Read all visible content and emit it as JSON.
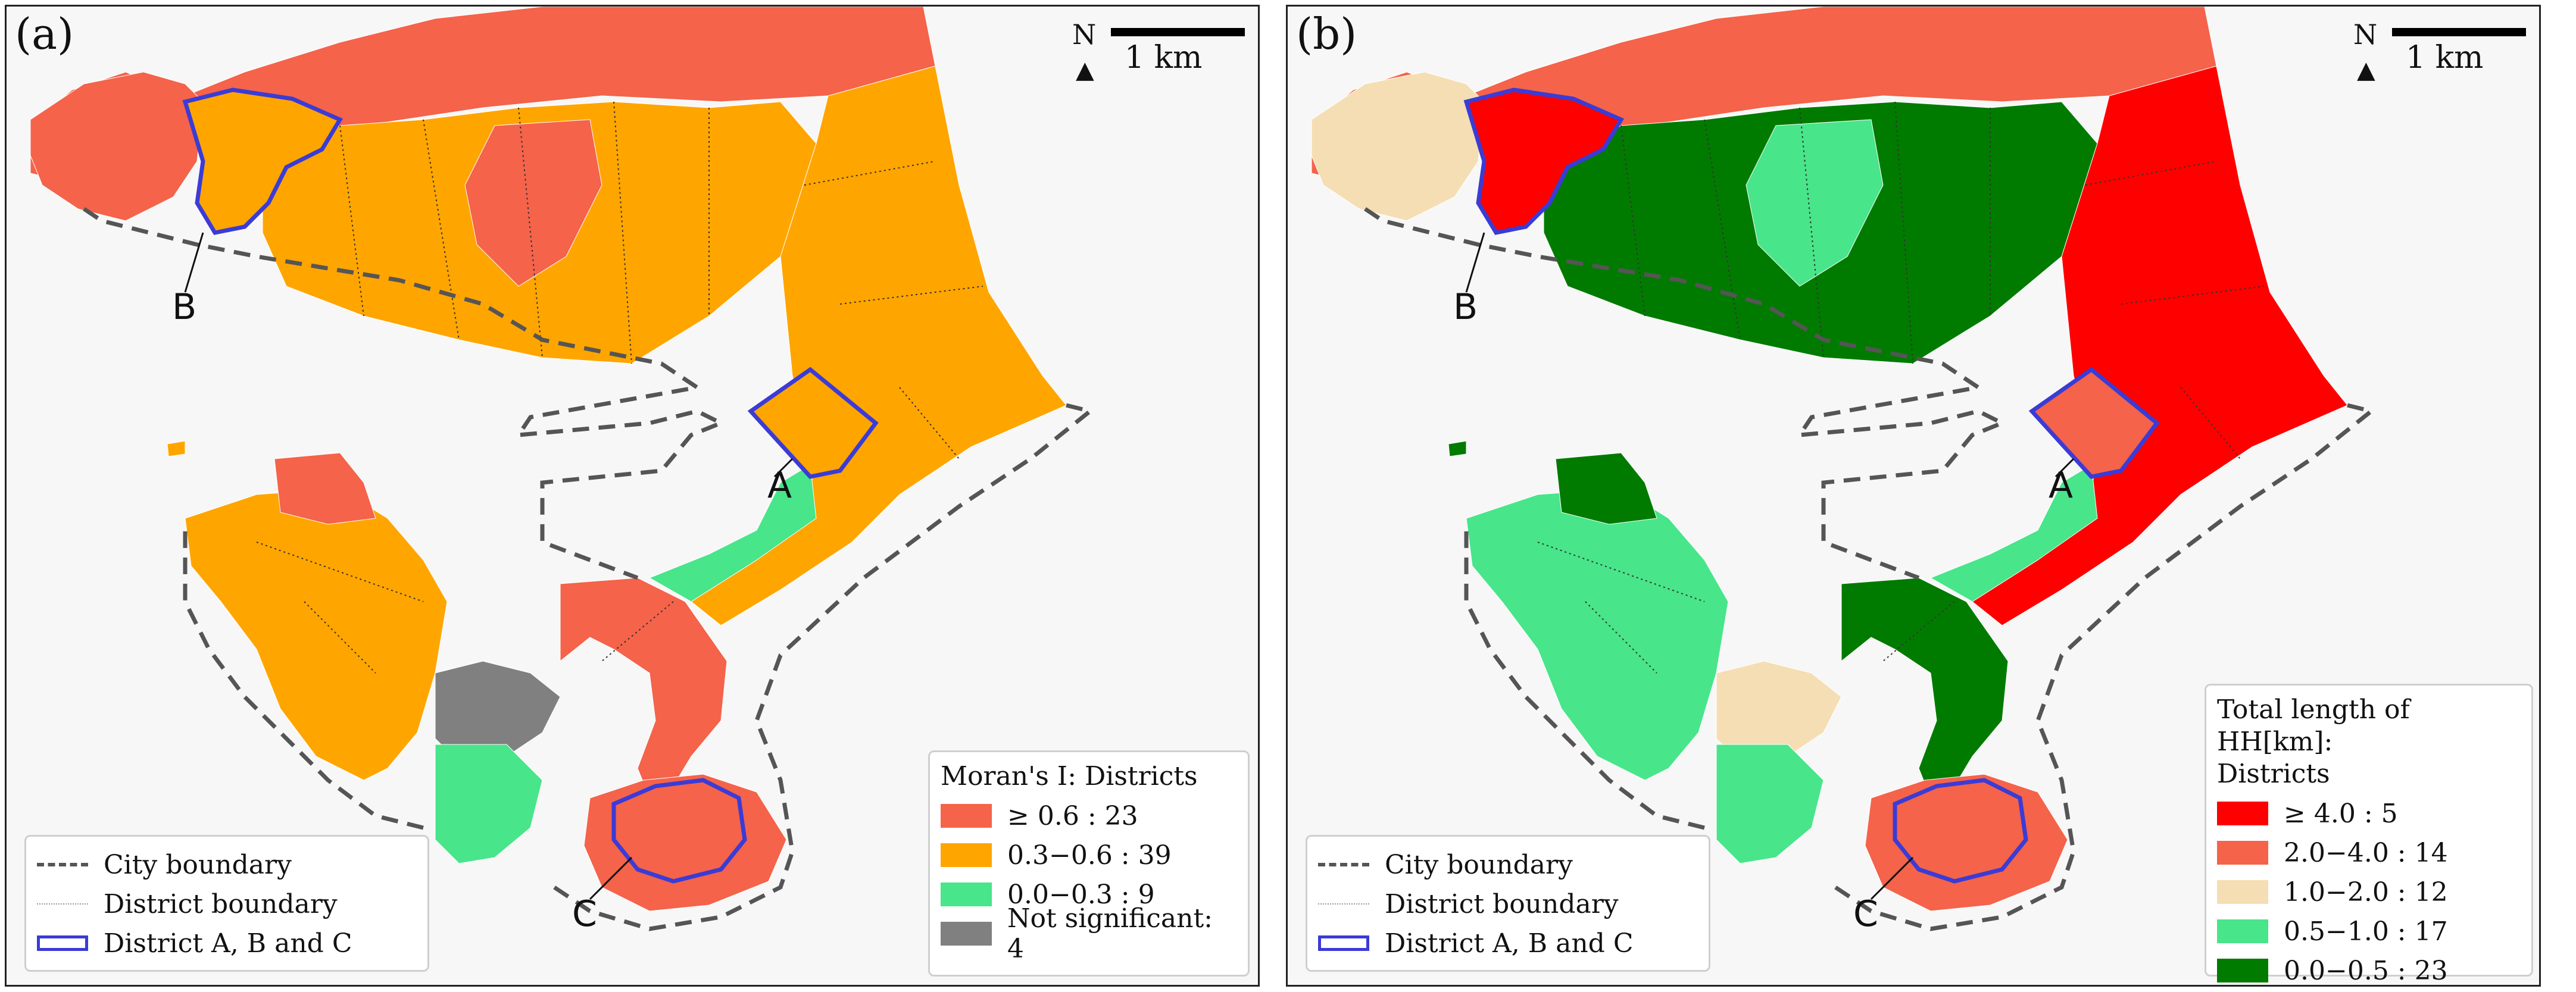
{
  "colors": {
    "background": "#f7f7f7",
    "outline": "#555555",
    "highlight": "#3b3bd6"
  },
  "shared": {
    "north_label": "N",
    "north_arrow": "▲",
    "scale_label": "1 km",
    "boundary_legend": [
      {
        "label": "City boundary",
        "style": "dashed",
        "color": "#555555"
      },
      {
        "label": "District boundary",
        "style": "dotted",
        "color": "#999999"
      },
      {
        "label": "District A, B and C",
        "style": "solid",
        "color": "#3b3bd6"
      }
    ],
    "district_labels": [
      "A",
      "B",
      "C"
    ]
  },
  "panels": [
    {
      "label": "(a)",
      "legend_title": "Moran's I: Districts",
      "classes": [
        {
          "label": "≥ 0.6     : 23",
          "color": "#f4634a"
        },
        {
          "label": "0.3−0.6 : 39",
          "color": "#ffa500"
        },
        {
          "label": "0.0−0.3 : 9",
          "color": "#48e58a"
        },
        {
          "label": "Not significant: 4",
          "color": "#808080"
        }
      ],
      "region_colors": {
        "north_band": "#f4634a",
        "peninsula_b": "#f4634a",
        "district_b": "#ffa500",
        "east_coast": "#ffa500",
        "central_hills": "#ffa500",
        "hill_pocket": "#f4634a",
        "coastal_strip": "#48e58a",
        "district_a": "#ffa500",
        "west_island": "#ffa500",
        "west_island_north": "#f4634a",
        "south_arc": "#f4634a",
        "south_bay": "#808080",
        "south_west": "#48e58a",
        "district_c": "#f4634a",
        "islet": "#ffa500"
      }
    },
    {
      "label": "(b)",
      "legend_title": "Total length of HH[km]:\nDistricts",
      "classes": [
        {
          "label": "≥ 4.0     : 5",
          "color": "#ff0000"
        },
        {
          "label": "2.0−4.0 : 14",
          "color": "#f4634a"
        },
        {
          "label": "1.0−2.0 : 12",
          "color": "#f5deb3"
        },
        {
          "label": "0.5−1.0 : 17",
          "color": "#48e58a"
        },
        {
          "label": "0.0−0.5 : 23",
          "color": "#007b00"
        }
      ],
      "region_colors": {
        "north_band": "#f4634a",
        "peninsula_b": "#f5deb3",
        "district_b": "#ff0000",
        "east_coast": "#ff0000",
        "central_hills": "#007b00",
        "hill_pocket": "#48e58a",
        "coastal_strip": "#48e58a",
        "district_a": "#f4634a",
        "west_island": "#48e58a",
        "west_island_north": "#007b00",
        "south_arc": "#007b00",
        "south_bay": "#f5deb3",
        "south_west": "#48e58a",
        "district_c": "#f4634a",
        "islet": "#007b00"
      }
    }
  ]
}
